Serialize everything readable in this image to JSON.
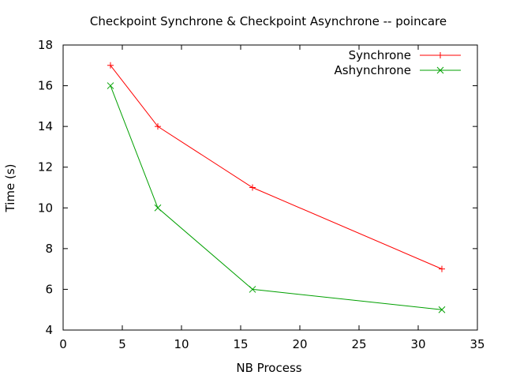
{
  "chart_data": {
    "type": "line",
    "title": "Checkpoint Synchrone & Checkpoint Asynchrone -- poincare",
    "xlabel": "NB Process",
    "ylabel": "Time (s)",
    "xlim": [
      0,
      35
    ],
    "ylim": [
      4,
      18
    ],
    "xticks": [
      0,
      5,
      10,
      15,
      20,
      25,
      30,
      35
    ],
    "yticks": [
      4,
      6,
      8,
      10,
      12,
      14,
      16,
      18
    ],
    "grid": false,
    "legend_position": "top-right",
    "x": [
      4,
      8,
      16,
      32
    ],
    "series": [
      {
        "name": "Synchrone",
        "values": [
          17,
          14,
          11,
          7
        ],
        "color": "#ff0000",
        "marker": "plus"
      },
      {
        "name": "Ashynchrone",
        "values": [
          16,
          10,
          6,
          5
        ],
        "color": "#00a000",
        "marker": "cross"
      }
    ]
  }
}
